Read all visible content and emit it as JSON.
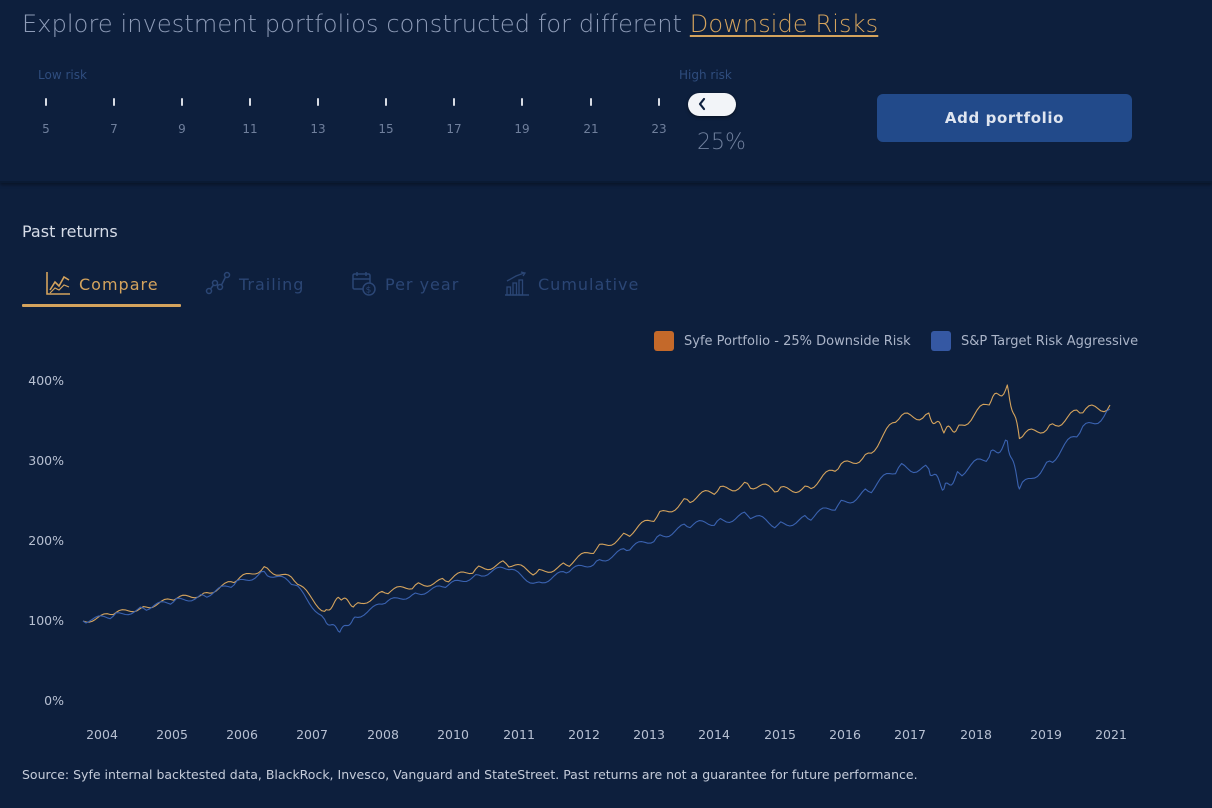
{
  "header": {
    "headline_prefix": "Explore investment portfolios constructed for different",
    "headline_link": "Downside Risks"
  },
  "risk_slider": {
    "low_label": "Low risk",
    "high_label": "High risk",
    "ticks": [
      "5",
      "7",
      "9",
      "11",
      "13",
      "15",
      "17",
      "19",
      "21",
      "23"
    ],
    "selected_value": "25%",
    "handle_icon": "chevron-left-icon"
  },
  "actions": {
    "add_portfolio": "Add portfolio"
  },
  "section": {
    "title": "Past returns"
  },
  "tabs": [
    {
      "label": "Compare",
      "icon": "line-chart-icon",
      "active": true
    },
    {
      "label": "Trailing",
      "icon": "trend-nodes-icon",
      "active": false
    },
    {
      "label": "Per year",
      "icon": "calendar-dollar-icon",
      "active": false
    },
    {
      "label": "Cumulative",
      "icon": "bar-growth-icon",
      "active": false
    }
  ],
  "colors": {
    "background": "#0d1f3d",
    "accent_gold": "#d4a35d",
    "button_blue": "#224a8a",
    "series_syfe": "#d4a35d",
    "series_sp": "#3a62b0",
    "legend_syfe": "#c4692a",
    "legend_sp": "#3558a3"
  },
  "chart_data": {
    "type": "line",
    "title": "",
    "xlabel": "",
    "ylabel": "",
    "ylim": [
      0,
      400
    ],
    "y_ticks": [
      "0%",
      "100%",
      "200%",
      "300%",
      "400%"
    ],
    "x_ticks": [
      "2004",
      "2005",
      "2006",
      "2007",
      "2008",
      "2010",
      "2011",
      "2012",
      "2013",
      "2014",
      "2015",
      "2016",
      "2017",
      "2018",
      "2019",
      "2021"
    ],
    "grid": false,
    "legend_position": "top-right",
    "series": [
      {
        "name": "Syfe Portfolio - 25% Downside Risk",
        "x": [
          2004.0,
          2004.5,
          2005.0,
          2005.5,
          2006.0,
          2006.5,
          2007.0,
          2007.5,
          2008.0,
          2008.25,
          2008.5,
          2009.0,
          2009.5,
          2010.0,
          2010.5,
          2011.0,
          2011.5,
          2012.0,
          2012.5,
          2013.0,
          2013.5,
          2014.0,
          2014.5,
          2015.0,
          2015.5,
          2016.0,
          2016.5,
          2017.0,
          2017.5,
          2018.0,
          2018.25,
          2018.5,
          2019.0,
          2019.3,
          2019.5,
          2020.0,
          2020.5,
          2021.0
        ],
        "values": [
          100,
          108,
          118,
          126,
          135,
          148,
          168,
          150,
          112,
          128,
          120,
          135,
          145,
          150,
          165,
          172,
          160,
          170,
          190,
          208,
          230,
          252,
          262,
          272,
          262,
          268,
          290,
          310,
          352,
          360,
          335,
          345,
          370,
          395,
          328,
          345,
          360,
          370
        ]
      },
      {
        "name": "S&P Target Risk Aggressive",
        "x": [
          2004.0,
          2004.5,
          2005.0,
          2005.5,
          2006.0,
          2006.5,
          2007.0,
          2007.5,
          2008.0,
          2008.25,
          2008.5,
          2009.0,
          2009.5,
          2010.0,
          2010.5,
          2011.0,
          2011.5,
          2012.0,
          2012.5,
          2013.0,
          2013.5,
          2014.0,
          2014.5,
          2015.0,
          2015.5,
          2016.0,
          2016.5,
          2017.0,
          2017.5,
          2018.0,
          2018.25,
          2018.5,
          2019.0,
          2019.3,
          2019.5,
          2020.0,
          2020.5,
          2021.0
        ],
        "values": [
          100,
          106,
          116,
          124,
          132,
          145,
          162,
          145,
          102,
          86,
          105,
          122,
          135,
          142,
          158,
          165,
          148,
          160,
          175,
          188,
          205,
          218,
          225,
          232,
          220,
          228,
          245,
          262,
          292,
          290,
          265,
          285,
          305,
          325,
          265,
          300,
          335,
          365
        ]
      }
    ]
  },
  "footer": {
    "source": "Source: Syfe internal backtested data, BlackRock, Invesco, Vanguard and StateStreet. Past returns are not a guarantee for future performance."
  }
}
